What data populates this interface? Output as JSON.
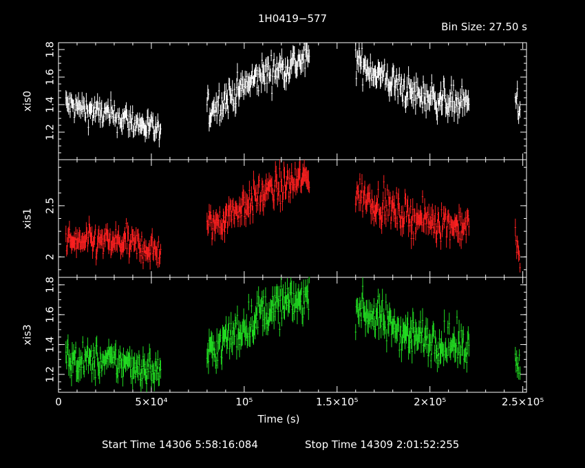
{
  "title": "1H0419−577",
  "bin_size": "Bin Size: 27.50 s",
  "footer": {
    "start": "Start Time 14306   5:58:16:084",
    "stop": "Stop Time 14309   2:01:52:255"
  },
  "colors": {
    "xis0": "#ffffff",
    "xis1": "#ff2020",
    "xis3": "#22dd22",
    "axes": "#ffffff"
  },
  "chart_data": [
    {
      "type": "scatter",
      "series": [
        {
          "name": "xis0",
          "color": "#ffffff"
        }
      ],
      "ylabel": "xis0",
      "xlim": [
        0,
        252000
      ],
      "ylim": [
        1.0,
        1.85
      ],
      "yticks": [
        1.2,
        1.4,
        1.6,
        1.8
      ],
      "yticklabels": [
        "1.2",
        "1.4",
        "1.6",
        "1.8"
      ],
      "segments": [
        {
          "x": [
            4000,
            35000
          ],
          "y": [
            1.4,
            1.3
          ],
          "noise": 0.06
        },
        {
          "x": [
            35000,
            55000
          ],
          "y": [
            1.3,
            1.2
          ],
          "noise": 0.06
        },
        {
          "x": [
            80000,
            110000
          ],
          "y": [
            1.35,
            1.62
          ],
          "noise": 0.07
        },
        {
          "x": [
            110000,
            135000
          ],
          "y": [
            1.62,
            1.74
          ],
          "noise": 0.07
        },
        {
          "x": [
            160000,
            190000
          ],
          "y": [
            1.72,
            1.48
          ],
          "noise": 0.07
        },
        {
          "x": [
            190000,
            221000
          ],
          "y": [
            1.48,
            1.4
          ],
          "noise": 0.07
        },
        {
          "x": [
            246000,
            248500
          ],
          "y": [
            1.48,
            1.35
          ],
          "noise": 0.06
        }
      ]
    },
    {
      "type": "scatter",
      "series": [
        {
          "name": "xis1",
          "color": "#ff2020"
        }
      ],
      "ylabel": "xis1",
      "xlim": [
        0,
        252000
      ],
      "ylim": [
        1.8,
        2.95
      ],
      "yticks": [
        2.0,
        2.5
      ],
      "yticklabels": [
        "2",
        "2.5"
      ],
      "segments": [
        {
          "x": [
            4000,
            35000
          ],
          "y": [
            2.14,
            2.14
          ],
          "noise": 0.09
        },
        {
          "x": [
            35000,
            55000
          ],
          "y": [
            2.14,
            2.05
          ],
          "noise": 0.09
        },
        {
          "x": [
            80000,
            110000
          ],
          "y": [
            2.28,
            2.62
          ],
          "noise": 0.1
        },
        {
          "x": [
            110000,
            135000
          ],
          "y": [
            2.62,
            2.78
          ],
          "noise": 0.1
        },
        {
          "x": [
            160000,
            190000
          ],
          "y": [
            2.62,
            2.38
          ],
          "noise": 0.1
        },
        {
          "x": [
            190000,
            221000
          ],
          "y": [
            2.38,
            2.3
          ],
          "noise": 0.1
        },
        {
          "x": [
            246000,
            248500
          ],
          "y": [
            2.2,
            1.95
          ],
          "noise": 0.08
        }
      ]
    },
    {
      "type": "scatter",
      "series": [
        {
          "name": "xis3",
          "color": "#22dd22"
        }
      ],
      "ylabel": "xis3",
      "xlabel": "Time (s)",
      "xlim": [
        0,
        252000
      ],
      "ylim": [
        1.08,
        1.85
      ],
      "yticks": [
        1.2,
        1.4,
        1.6,
        1.8
      ],
      "yticklabels": [
        "1.2",
        "1.4",
        "1.6",
        "1.8"
      ],
      "xticks": [
        0,
        50000,
        100000,
        150000,
        200000,
        250000
      ],
      "xticklabels": [
        "0",
        "5×10⁴",
        "10⁵",
        "1.5×10⁵",
        "2×10⁵",
        "2.5×10⁵"
      ],
      "segments": [
        {
          "x": [
            4000,
            35000
          ],
          "y": [
            1.3,
            1.28
          ],
          "noise": 0.07
        },
        {
          "x": [
            35000,
            55000
          ],
          "y": [
            1.28,
            1.22
          ],
          "noise": 0.07
        },
        {
          "x": [
            80000,
            110000
          ],
          "y": [
            1.33,
            1.62
          ],
          "noise": 0.08
        },
        {
          "x": [
            110000,
            135000
          ],
          "y": [
            1.62,
            1.72
          ],
          "noise": 0.08
        },
        {
          "x": [
            160000,
            190000
          ],
          "y": [
            1.66,
            1.46
          ],
          "noise": 0.08
        },
        {
          "x": [
            190000,
            221000
          ],
          "y": [
            1.46,
            1.38
          ],
          "noise": 0.08
        },
        {
          "x": [
            246000,
            248500
          ],
          "y": [
            1.38,
            1.22
          ],
          "noise": 0.06
        }
      ]
    }
  ]
}
